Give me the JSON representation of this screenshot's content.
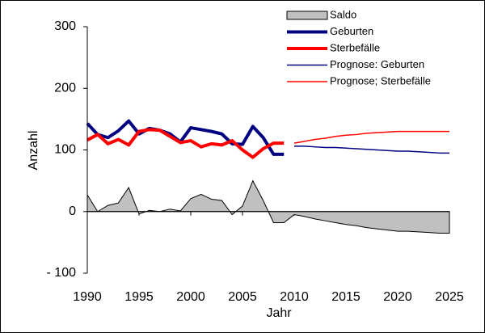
{
  "chart_data": {
    "type": "line",
    "x_label": "Jahr",
    "y_label": "Anzahl",
    "x": [
      1990,
      1991,
      1992,
      1993,
      1994,
      1995,
      1996,
      1997,
      1998,
      1999,
      2000,
      2001,
      2002,
      2003,
      2004,
      2005,
      2006,
      2007,
      2008,
      2009,
      2010,
      2011,
      2012,
      2013,
      2014,
      2015,
      2016,
      2017,
      2018,
      2019,
      2020,
      2021,
      2022,
      2023,
      2024,
      2025
    ],
    "xlim": [
      1990,
      2025
    ],
    "xticks": [
      1990,
      1995,
      2000,
      2005,
      2010,
      2015,
      2020,
      2025
    ],
    "ylim": [
      -100,
      300
    ],
    "yticks": [
      {
        "value": -100,
        "label": "- 100"
      },
      0,
      100,
      200,
      300
    ],
    "grid": false,
    "legend": "top-right",
    "series": [
      {
        "name": "Saldo",
        "kind": "area",
        "color": "#c0c0c0",
        "line_width": 1,
        "values": [
          27,
          0,
          10,
          14,
          39,
          -4,
          2,
          0,
          4,
          1,
          21,
          28,
          20,
          18,
          -5,
          9,
          50,
          18,
          -18,
          -18,
          -5,
          -8,
          -12,
          -15,
          -18,
          -21,
          -23,
          -26,
          -28,
          -30,
          -32,
          -32,
          -33,
          -34,
          -35,
          -35
        ]
      },
      {
        "name": "Geburten",
        "kind": "line",
        "color": "#000080",
        "line_width": 4,
        "values": [
          143,
          125,
          120,
          131,
          147,
          126,
          135,
          132,
          126,
          113,
          136,
          133,
          130,
          126,
          110,
          109,
          138,
          120,
          93,
          93,
          null,
          null,
          null,
          null,
          null,
          null,
          null,
          null,
          null,
          null,
          null,
          null,
          null,
          null,
          null,
          null
        ]
      },
      {
        "name": "Sterbefälle",
        "kind": "line",
        "color": "#ff0000",
        "line_width": 4,
        "values": [
          116,
          125,
          110,
          117,
          108,
          130,
          133,
          132,
          122,
          112,
          115,
          105,
          110,
          108,
          115,
          100,
          88,
          102,
          111,
          111,
          null,
          null,
          null,
          null,
          null,
          null,
          null,
          null,
          null,
          null,
          null,
          null,
          null,
          null,
          null,
          null
        ]
      },
      {
        "name": "Prognose: Geburten",
        "kind": "line",
        "color": "#000080",
        "line_width": 1.5,
        "values": [
          null,
          null,
          null,
          null,
          null,
          null,
          null,
          null,
          null,
          null,
          null,
          null,
          null,
          null,
          null,
          null,
          null,
          null,
          null,
          null,
          106,
          106,
          105,
          104,
          104,
          103,
          102,
          101,
          100,
          99,
          98,
          98,
          97,
          96,
          95,
          95
        ]
      },
      {
        "name": "Prognose; Sterbefälle",
        "kind": "line",
        "color": "#ff0000",
        "line_width": 1.5,
        "values": [
          null,
          null,
          null,
          null,
          null,
          null,
          null,
          null,
          null,
          null,
          null,
          null,
          null,
          null,
          null,
          null,
          null,
          null,
          null,
          null,
          111,
          114,
          117,
          119,
          122,
          124,
          125,
          127,
          128,
          129,
          130,
          130,
          130,
          130,
          130,
          130
        ]
      }
    ]
  }
}
